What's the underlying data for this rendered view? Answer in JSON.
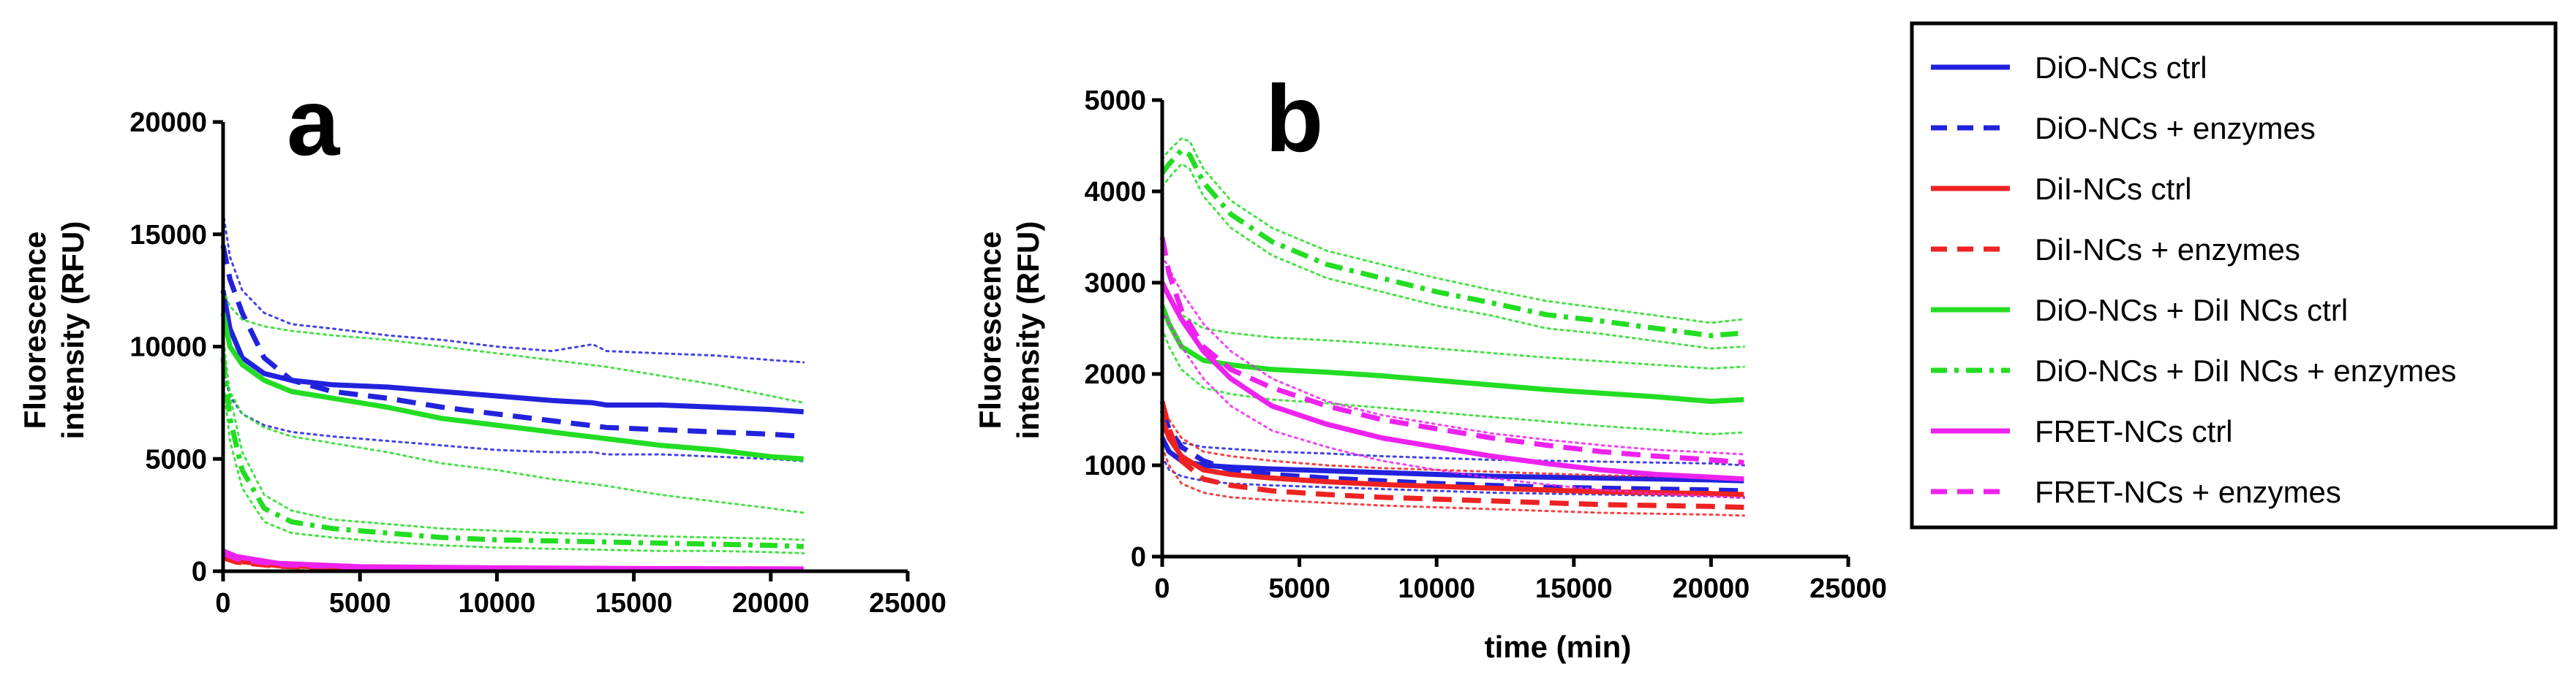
{
  "chart_data": [
    {
      "type": "line",
      "panel": "a",
      "xlabel": "",
      "ylabel_lines": [
        "Fluorescence",
        "intensity (RFU)"
      ],
      "xlim": [
        0,
        25000
      ],
      "ylim": [
        0,
        20000
      ],
      "xticks": [
        "0",
        "5000",
        "10000",
        "15000",
        "20000",
        "25000"
      ],
      "yticks": [
        "0",
        "5000",
        "10000",
        "15000",
        "20000"
      ],
      "series": [
        {
          "name": "DiO-NCs ctrl",
          "color": "#2222dd",
          "dash": "solid",
          "x": [
            0,
            250,
            700,
            1500,
            2500,
            4000,
            6000,
            8000,
            10000,
            12000,
            13500,
            14000,
            16000,
            18000,
            20000,
            21200
          ],
          "y": [
            12500,
            10800,
            9500,
            8800,
            8500,
            8300,
            8200,
            8000,
            7800,
            7600,
            7500,
            7400,
            7400,
            7300,
            7200,
            7100
          ],
          "upper": [
            16000,
            14000,
            12500,
            11500,
            11000,
            10800,
            10500,
            10300,
            10000,
            9800,
            10100,
            9800,
            9700,
            9600,
            9400,
            9300
          ],
          "lower": [
            9000,
            7800,
            7000,
            6500,
            6200,
            6000,
            5800,
            5600,
            5400,
            5300,
            5300,
            5200,
            5200,
            5100,
            5000,
            4900
          ]
        },
        {
          "name": "DiO-NCs + enzymes",
          "color": "#2222dd",
          "dash": "dashed",
          "x": [
            0,
            250,
            700,
            1500,
            2500,
            4000,
            6000,
            8000,
            10000,
            12000,
            14000,
            16000,
            18000,
            20000,
            21200
          ],
          "y": [
            14500,
            13000,
            11500,
            9500,
            8500,
            8000,
            7700,
            7300,
            7000,
            6700,
            6400,
            6300,
            6200,
            6100,
            6000
          ]
        },
        {
          "name": "DiI-NCs ctrl",
          "color": "#ee2222",
          "dash": "solid",
          "x": [
            0,
            500,
            2000,
            5000,
            10000,
            15000,
            21200
          ],
          "y": [
            700,
            450,
            250,
            150,
            100,
            80,
            60
          ]
        },
        {
          "name": "DiI-NCs + enzymes",
          "color": "#ee2222",
          "dash": "dashed",
          "x": [
            0,
            500,
            2000,
            5000,
            10000,
            15000,
            21200
          ],
          "y": [
            600,
            400,
            220,
            140,
            90,
            70,
            50
          ]
        },
        {
          "name": "DiO-NCs + DiI NCs ctrl",
          "color": "#22dd22",
          "dash": "solid",
          "x": [
            0,
            250,
            700,
            1500,
            2500,
            4000,
            6000,
            8000,
            10000,
            12000,
            14000,
            16000,
            18000,
            20000,
            21200
          ],
          "y": [
            11500,
            10000,
            9200,
            8500,
            8000,
            7700,
            7300,
            6800,
            6500,
            6200,
            5900,
            5600,
            5400,
            5100,
            5000
          ],
          "upper": [
            12500,
            11800,
            11200,
            10900,
            10700,
            10500,
            10300,
            10000,
            9700,
            9400,
            9100,
            8700,
            8300,
            7800,
            7500
          ],
          "lower": [
            9000,
            8000,
            7000,
            6400,
            6000,
            5700,
            5300,
            4800,
            4500,
            4100,
            3800,
            3400,
            3100,
            2800,
            2600
          ]
        },
        {
          "name": "DiO-NCs + DiI NCs + enzymes",
          "color": "#22dd22",
          "dash": "dashdot",
          "x": [
            0,
            250,
            700,
            1500,
            2500,
            4000,
            6000,
            8000,
            10000,
            12000,
            14000,
            16000,
            18000,
            20000,
            21200
          ],
          "y": [
            9500,
            6800,
            4500,
            2800,
            2200,
            1900,
            1700,
            1500,
            1400,
            1350,
            1300,
            1250,
            1200,
            1150,
            1100
          ],
          "upper": [
            10500,
            7800,
            5300,
            3400,
            2700,
            2300,
            2100,
            1900,
            1800,
            1700,
            1650,
            1550,
            1500,
            1450,
            1400
          ],
          "lower": [
            8500,
            5800,
            3700,
            2200,
            1700,
            1500,
            1300,
            1150,
            1050,
            1000,
            950,
            900,
            900,
            850,
            800
          ]
        },
        {
          "name": "FRET-NCs ctrl",
          "color": "#ee22ee",
          "dash": "solid",
          "x": [
            0,
            500,
            2000,
            5000,
            10000,
            15000,
            21200
          ],
          "y": [
            900,
            650,
            350,
            200,
            150,
            120,
            100
          ]
        },
        {
          "name": "FRET-NCs + enzymes",
          "color": "#ee22ee",
          "dash": "dashed",
          "x": [
            0,
            500,
            2000,
            5000,
            10000,
            15000,
            21200
          ],
          "y": [
            800,
            550,
            300,
            180,
            130,
            100,
            90
          ]
        }
      ]
    },
    {
      "type": "line",
      "panel": "b",
      "xlabel": "time (min)",
      "ylabel_lines": [
        "Fluorescence",
        "intensity (RFU)"
      ],
      "xlim": [
        0,
        25000
      ],
      "ylim": [
        0,
        5000
      ],
      "xticks": [
        "0",
        "5000",
        "10000",
        "15000",
        "20000",
        "25000"
      ],
      "yticks": [
        "0",
        "1000",
        "2000",
        "3000",
        "4000",
        "5000"
      ],
      "series": [
        {
          "name": "DiO-NCs ctrl",
          "color": "#2222dd",
          "dash": "solid",
          "x": [
            0,
            250,
            700,
            1500,
            2500,
            4000,
            6000,
            8000,
            10000,
            12000,
            14000,
            16000,
            18000,
            20000,
            21200
          ],
          "y": [
            1300,
            1150,
            1050,
            1000,
            980,
            960,
            940,
            920,
            900,
            880,
            870,
            860,
            850,
            840,
            830
          ],
          "upper": [
            1500,
            1350,
            1250,
            1200,
            1180,
            1150,
            1130,
            1100,
            1080,
            1060,
            1050,
            1040,
            1030,
            1020,
            1000
          ],
          "lower": [
            1100,
            950,
            880,
            830,
            800,
            780,
            760,
            740,
            720,
            700,
            690,
            680,
            670,
            660,
            650
          ]
        },
        {
          "name": "DiO-NCs + enzymes",
          "color": "#2222dd",
          "dash": "dashed",
          "x": [
            0,
            250,
            700,
            1500,
            2500,
            4000,
            6000,
            8000,
            10000,
            12000,
            14000,
            16000,
            18000,
            20000,
            21200
          ],
          "y": [
            1600,
            1400,
            1200,
            1050,
            950,
            900,
            860,
            830,
            800,
            780,
            760,
            750,
            740,
            730,
            720
          ]
        },
        {
          "name": "DiI-NCs ctrl",
          "color": "#ee2222",
          "dash": "solid",
          "x": [
            0,
            250,
            700,
            1500,
            2500,
            4000,
            6000,
            8000,
            10000,
            12000,
            14000,
            16000,
            18000,
            20000,
            21200
          ],
          "y": [
            1500,
            1300,
            1100,
            950,
            900,
            860,
            820,
            790,
            770,
            750,
            730,
            710,
            700,
            690,
            680
          ],
          "upper": [
            1700,
            1500,
            1300,
            1150,
            1100,
            1050,
            1000,
            970,
            950,
            930,
            910,
            890,
            880,
            870,
            860
          ],
          "lower": [
            1200,
            1000,
            800,
            700,
            650,
            620,
            590,
            560,
            540,
            520,
            500,
            480,
            470,
            460,
            450
          ]
        },
        {
          "name": "DiI-NCs + enzymes",
          "color": "#ee2222",
          "dash": "dashed",
          "x": [
            0,
            250,
            700,
            1500,
            2500,
            4000,
            6000,
            8000,
            10000,
            12000,
            14000,
            16000,
            18000,
            20000,
            21200
          ],
          "y": [
            1700,
            1400,
            1050,
            850,
            780,
            720,
            680,
            650,
            630,
            610,
            590,
            570,
            560,
            550,
            540
          ]
        },
        {
          "name": "DiO-NCs + DiI NCs ctrl",
          "color": "#22dd22",
          "dash": "solid",
          "x": [
            0,
            250,
            700,
            1500,
            2500,
            4000,
            6000,
            8000,
            10000,
            12000,
            14000,
            16000,
            18000,
            20000,
            21200
          ],
          "y": [
            2750,
            2550,
            2300,
            2150,
            2100,
            2050,
            2020,
            1980,
            1930,
            1880,
            1830,
            1790,
            1750,
            1700,
            1720
          ],
          "upper": [
            3000,
            2850,
            2650,
            2500,
            2450,
            2400,
            2370,
            2330,
            2280,
            2230,
            2180,
            2140,
            2100,
            2060,
            2080
          ],
          "lower": [
            2500,
            2300,
            2050,
            1850,
            1780,
            1720,
            1680,
            1630,
            1580,
            1530,
            1480,
            1430,
            1390,
            1340,
            1360
          ]
        },
        {
          "name": "DiO-NCs + DiI NCs + enzymes",
          "color": "#22dd22",
          "dash": "dashdot",
          "x": [
            0,
            250,
            700,
            1000,
            1500,
            2500,
            4000,
            6000,
            8000,
            10000,
            12000,
            14000,
            16000,
            18000,
            20000,
            21200
          ],
          "y": [
            4200,
            4300,
            4450,
            4400,
            4100,
            3750,
            3450,
            3200,
            3050,
            2900,
            2780,
            2650,
            2580,
            2500,
            2420,
            2450
          ],
          "upper": [
            4350,
            4450,
            4580,
            4550,
            4250,
            3900,
            3600,
            3350,
            3200,
            3050,
            2920,
            2800,
            2720,
            2640,
            2560,
            2600
          ],
          "lower": [
            4050,
            4150,
            4300,
            4250,
            3950,
            3600,
            3300,
            3050,
            2900,
            2750,
            2640,
            2500,
            2440,
            2360,
            2280,
            2300
          ]
        },
        {
          "name": "FRET-NCs ctrl",
          "color": "#ee22ee",
          "dash": "solid",
          "x": [
            0,
            250,
            700,
            1500,
            2500,
            4000,
            6000,
            8000,
            10000,
            12000,
            14000,
            16000,
            18000,
            20000,
            21200
          ],
          "y": [
            3000,
            2850,
            2600,
            2250,
            1950,
            1650,
            1450,
            1300,
            1200,
            1100,
            1020,
            950,
            900,
            870,
            850
          ],
          "upper": [
            3300,
            3150,
            2900,
            2550,
            2250,
            1950,
            1700,
            1550,
            1450,
            1350,
            1280,
            1220,
            1170,
            1140,
            1120
          ],
          "lower": [
            2700,
            2550,
            2300,
            1950,
            1650,
            1380,
            1200,
            1050,
            950,
            860,
            790,
            730,
            690,
            660,
            640
          ]
        },
        {
          "name": "FRET-NCs + enzymes",
          "color": "#ee22ee",
          "dash": "dashed",
          "x": [
            0,
            250,
            700,
            1500,
            2500,
            4000,
            6000,
            8000,
            10000,
            12000,
            14000,
            16000,
            18000,
            20000,
            21200
          ],
          "y": [
            3500,
            3100,
            2700,
            2300,
            2050,
            1850,
            1650,
            1500,
            1400,
            1300,
            1220,
            1150,
            1100,
            1060,
            1030
          ]
        }
      ]
    }
  ],
  "legend": {
    "entries": [
      {
        "label": "DiO-NCs ctrl",
        "color": "#2222dd",
        "dash": "solid"
      },
      {
        "label": "DiO-NCs + enzymes",
        "color": "#2222dd",
        "dash": "dashed"
      },
      {
        "label": "DiI-NCs ctrl",
        "color": "#ee2222",
        "dash": "solid"
      },
      {
        "label": "DiI-NCs + enzymes",
        "color": "#ee2222",
        "dash": "dashed"
      },
      {
        "label": "DiO-NCs + DiI NCs ctrl",
        "color": "#22dd22",
        "dash": "solid"
      },
      {
        "label": "DiO-NCs + DiI NCs + enzymes",
        "color": "#22dd22",
        "dash": "dashdot"
      },
      {
        "label": "FRET-NCs ctrl",
        "color": "#ee22ee",
        "dash": "solid"
      },
      {
        "label": "FRET-NCs + enzymes",
        "color": "#ee22ee",
        "dash": "dashed"
      }
    ]
  }
}
